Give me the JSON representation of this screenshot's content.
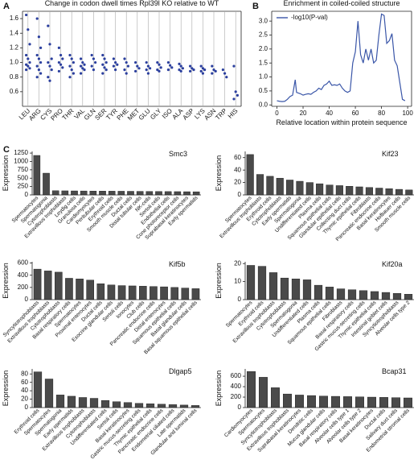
{
  "chart_data": [
    {
      "type": "strip",
      "panel_label": "A",
      "title": "Change in codon dwell times Rpl39l KO relative to WT",
      "categories": [
        "LEU",
        "ARG",
        "CYS",
        "PRO",
        "THR",
        "VAL",
        "GLN",
        "SER",
        "TYR",
        "PHE",
        "MET",
        "GLU",
        "GLY",
        "ISO",
        "ALA",
        "ASP",
        "LYS",
        "ASN",
        "TRP",
        "HIS"
      ],
      "values": [
        [
          1.65,
          1.45,
          1.25,
          1.1,
          1.05,
          1.0,
          0.97,
          0.95,
          0.92,
          0.9
        ],
        [
          1.6,
          1.35,
          1.2,
          1.1,
          1.05,
          1.0,
          0.95,
          0.9,
          0.85,
          0.8
        ],
        [
          1.5,
          1.25,
          1.05,
          1.0,
          0.95,
          0.9,
          0.8,
          0.75
        ],
        [
          1.2,
          1.1,
          1.05,
          1.0,
          0.97,
          0.93,
          0.88
        ],
        [
          1.1,
          1.05,
          1.0,
          0.95,
          0.9,
          0.85,
          0.8
        ],
        [
          1.05,
          1.0,
          0.97,
          0.95,
          0.92,
          0.9,
          0.85
        ],
        [
          1.1,
          1.05,
          1.0,
          0.95,
          0.9
        ],
        [
          1.1,
          1.05,
          1.0,
          0.97,
          0.93,
          0.9,
          0.85
        ],
        [
          1.05,
          1.0,
          0.97,
          0.95,
          0.9
        ],
        [
          1.05,
          1.0,
          0.95,
          0.9,
          0.85
        ],
        [
          1.0,
          0.95,
          0.92,
          0.88
        ],
        [
          1.0,
          0.95,
          0.92,
          0.9,
          0.85
        ],
        [
          1.0,
          0.97,
          0.93,
          0.9,
          0.88
        ],
        [
          1.0,
          0.96,
          0.93,
          0.9
        ],
        [
          0.98,
          0.95,
          0.92,
          0.9,
          0.88
        ],
        [
          0.95,
          0.92,
          0.9,
          0.88
        ],
        [
          0.95,
          0.92,
          0.9,
          0.88,
          0.85
        ],
        [
          0.95,
          0.9,
          0.88,
          0.85
        ],
        [
          0.9,
          0.85,
          0.8
        ],
        [
          0.95,
          0.6,
          0.55,
          0.5
        ]
      ],
      "color": "#2b3f9e",
      "grid": true,
      "ylim": [
        0.4,
        1.7
      ],
      "yticks": [
        0.6,
        0.8,
        {
          "value": 1,
          "label": "1.0"
        },
        1.2,
        1.4,
        1.6
      ]
    },
    {
      "type": "line",
      "panel_label": "B",
      "title": "Enrichment in coiled-coiled structure",
      "x_label": "Relative location within protein sequence",
      "x": [
        0,
        2,
        4,
        6,
        8,
        10,
        12,
        14,
        15,
        18,
        20,
        22,
        24,
        26,
        28,
        30,
        32,
        34,
        36,
        38,
        40,
        42,
        44,
        46,
        48,
        50,
        52,
        54,
        56,
        58,
        60,
        62,
        64,
        66,
        68,
        70,
        72,
        74,
        76,
        78,
        80,
        82,
        84,
        86,
        88,
        90,
        92,
        94,
        96,
        98
      ],
      "series": [
        {
          "name": "-log10(P-val)",
          "color": "#3a56a8",
          "values": [
            0.15,
            0.13,
            0.12,
            0.13,
            0.2,
            0.3,
            0.35,
            0.9,
            0.45,
            0.4,
            0.35,
            0.38,
            0.4,
            0.38,
            0.45,
            0.5,
            0.6,
            0.55,
            0.7,
            0.75,
            0.85,
            0.7,
            0.72,
            0.7,
            0.75,
            0.6,
            0.5,
            0.45,
            0.5,
            1.5,
            1.9,
            3.0,
            1.8,
            1.5,
            2.0,
            1.6,
            2.0,
            1.5,
            1.6,
            2.5,
            3.25,
            3.2,
            2.2,
            2.3,
            2.55,
            1.6,
            1.4,
            0.8,
            0.2,
            0.15
          ]
        }
      ],
      "legend": "upper left",
      "xlim": [
        -4,
        103
      ],
      "xticks": [
        0,
        20,
        40,
        60,
        80,
        100
      ],
      "ylim": [
        -0.05,
        3.35
      ],
      "yticks": [
        {
          "value": 0,
          "label": "0.0"
        },
        0.5,
        {
          "value": 1,
          "label": "1.0"
        },
        1.5,
        {
          "value": 2,
          "label": "2.0"
        },
        2.5,
        {
          "value": 3,
          "label": "3.0"
        }
      ]
    },
    {
      "type": "bar",
      "panel_label": "C",
      "title": "Smc3",
      "y_label": "Expression",
      "color": "#4a4a4a",
      "categories": [
        "Spermatocytes",
        "Spermatogonia",
        "Cytotrophoblasts",
        "Extravillous trophoblasts",
        "Leydig cells",
        "Granulosa cells",
        "Cardiomyocytes",
        "Peritubular cells",
        "Erythroid cells",
        "Smooth muscle cells",
        "Ductal cells",
        "Distal tubular cells",
        "NK-cells",
        "Sertoli cells",
        "Endothelial cells",
        "Cone photoreceptor cells",
        "Suprabasal keratinocytes",
        "Early spermatids"
      ],
      "values": [
        1180,
        650,
        125,
        122,
        120,
        118,
        116,
        114,
        112,
        110,
        108,
        106,
        104,
        102,
        100,
        98,
        96,
        94
      ],
      "ylim": [
        0,
        1300
      ],
      "yticks": [
        0,
        250,
        500,
        750,
        1000,
        1250
      ]
    },
    {
      "type": "bar",
      "title": "Kif23",
      "y_label": "Expression",
      "color": "#4a4a4a",
      "categories": [
        "Spermatocytes",
        "Extravillous trophoblasts",
        "Erythroid cells",
        "Cytotrophoblasts",
        "Early spermatids",
        "Spermatogonia",
        "Undifferentiated cells",
        "Plasma cells",
        "Squamous epithelial cells",
        "Glandular epithelial cells",
        "Collecting duct cells",
        "Thymic epithelial cells",
        "Fibroblasts",
        "Pancreatic endocrine cells",
        "Basal keratinocytes",
        "Hofbauer cells",
        "Smooth muscle cells"
      ],
      "values": [
        65,
        33,
        30,
        27,
        24,
        22,
        20,
        18,
        16,
        15,
        14,
        13,
        12,
        11,
        10,
        9,
        8
      ],
      "ylim": [
        0,
        70
      ],
      "yticks": [
        0,
        20,
        40,
        60
      ]
    },
    {
      "type": "bar",
      "title": "Kif5b",
      "y_label": "Expression",
      "color": "#4a4a4a",
      "categories": [
        "Syncytiotrophoblasts",
        "Extravillous trophoblasts",
        "Cytotrophoblasts",
        "Basal respiratory cells",
        "Spermatocytes",
        "Proximal enterocytes",
        "Ductal cells",
        "Exocrine glandular cells",
        "Sertoli cells",
        "Ionocytes",
        "Club cells",
        "Pancreatic endocrine cells",
        "Distal enterocytes",
        "Squamous epithelial cells",
        "Basal glandular cells",
        "Basal squamous epithelial cells"
      ],
      "values": [
        500,
        470,
        450,
        350,
        340,
        320,
        260,
        240,
        230,
        225,
        220,
        215,
        210,
        200,
        190,
        180
      ],
      "ylim": [
        0,
        620
      ],
      "yticks": [
        0,
        200,
        400,
        600
      ]
    },
    {
      "type": "bar",
      "title": "Kif20a",
      "y_label": "Expression",
      "color": "#4a4a4a",
      "categories": [
        "Spermatocytes",
        "Erythroid cells",
        "Extravillous trophoblasts",
        "Cytotrophoblasts",
        "Spermatogonia",
        "Undifferentiated cells",
        "Plasma cells",
        "Squamous epithelial cells",
        "Fibroblasts",
        "Basal respiratory cells",
        "Gastric mucus-secreting cells",
        "Thymic epithelial cells",
        "Intestinal goblet cells",
        "Syncytiotrophoblasts",
        "Alveolar cells type 2"
      ],
      "values": [
        19,
        18.5,
        15,
        12,
        11.5,
        11,
        8,
        7,
        6,
        5.5,
        5,
        4.5,
        4,
        3.5,
        3
      ],
      "ylim": [
        0,
        21
      ],
      "yticks": [
        0,
        10,
        20
      ]
    },
    {
      "type": "bar",
      "title": "Dlgap5",
      "y_label": "Expression",
      "color": "#4a4a4a",
      "categories": [
        "Erythroid cells",
        "Spermatocytes",
        "Spermatogonia",
        "Early spermatids",
        "Extravillous trophoblasts",
        "Cytotrophoblasts",
        "Undifferentiated cells",
        "Sertoli cells",
        "Basal keratinocytes",
        "Gastric mucus-secreting cells",
        "Thymic epithelial cells",
        "Pancreatic endocrine cells",
        "Endometrial ciliated cells",
        "Late spermatids",
        "Glandular and luminal cells"
      ],
      "values": [
        85,
        68,
        30,
        27,
        24,
        22,
        17,
        14,
        12,
        10,
        9,
        8,
        7,
        6,
        5
      ],
      "ylim": [
        0,
        92
      ],
      "yticks": [
        0,
        20,
        40,
        60,
        80
      ]
    },
    {
      "type": "bar",
      "title": "Bcap31",
      "y_label": "Expression",
      "color": "#4a4a4a",
      "categories": [
        "Cardiomyocytes",
        "Spermatocytes",
        "Syncytiotrophoblasts",
        "Extravillous trophoblasts",
        "Suprabasal keratinocytes",
        "Dendritic cells",
        "Mucus glandular cells",
        "Basal respiratory cells",
        "Alveolar cells type 1",
        "Alveolar cells type 2",
        "Basal keratinocytes",
        "Ductal cells",
        "Salivary duct cells",
        "Endometrial stromal cells"
      ],
      "values": [
        690,
        580,
        380,
        260,
        240,
        230,
        220,
        215,
        210,
        205,
        200,
        195,
        190,
        185
      ],
      "ylim": [
        0,
        740
      ],
      "yticks": [
        0,
        200,
        400,
        600
      ]
    }
  ]
}
